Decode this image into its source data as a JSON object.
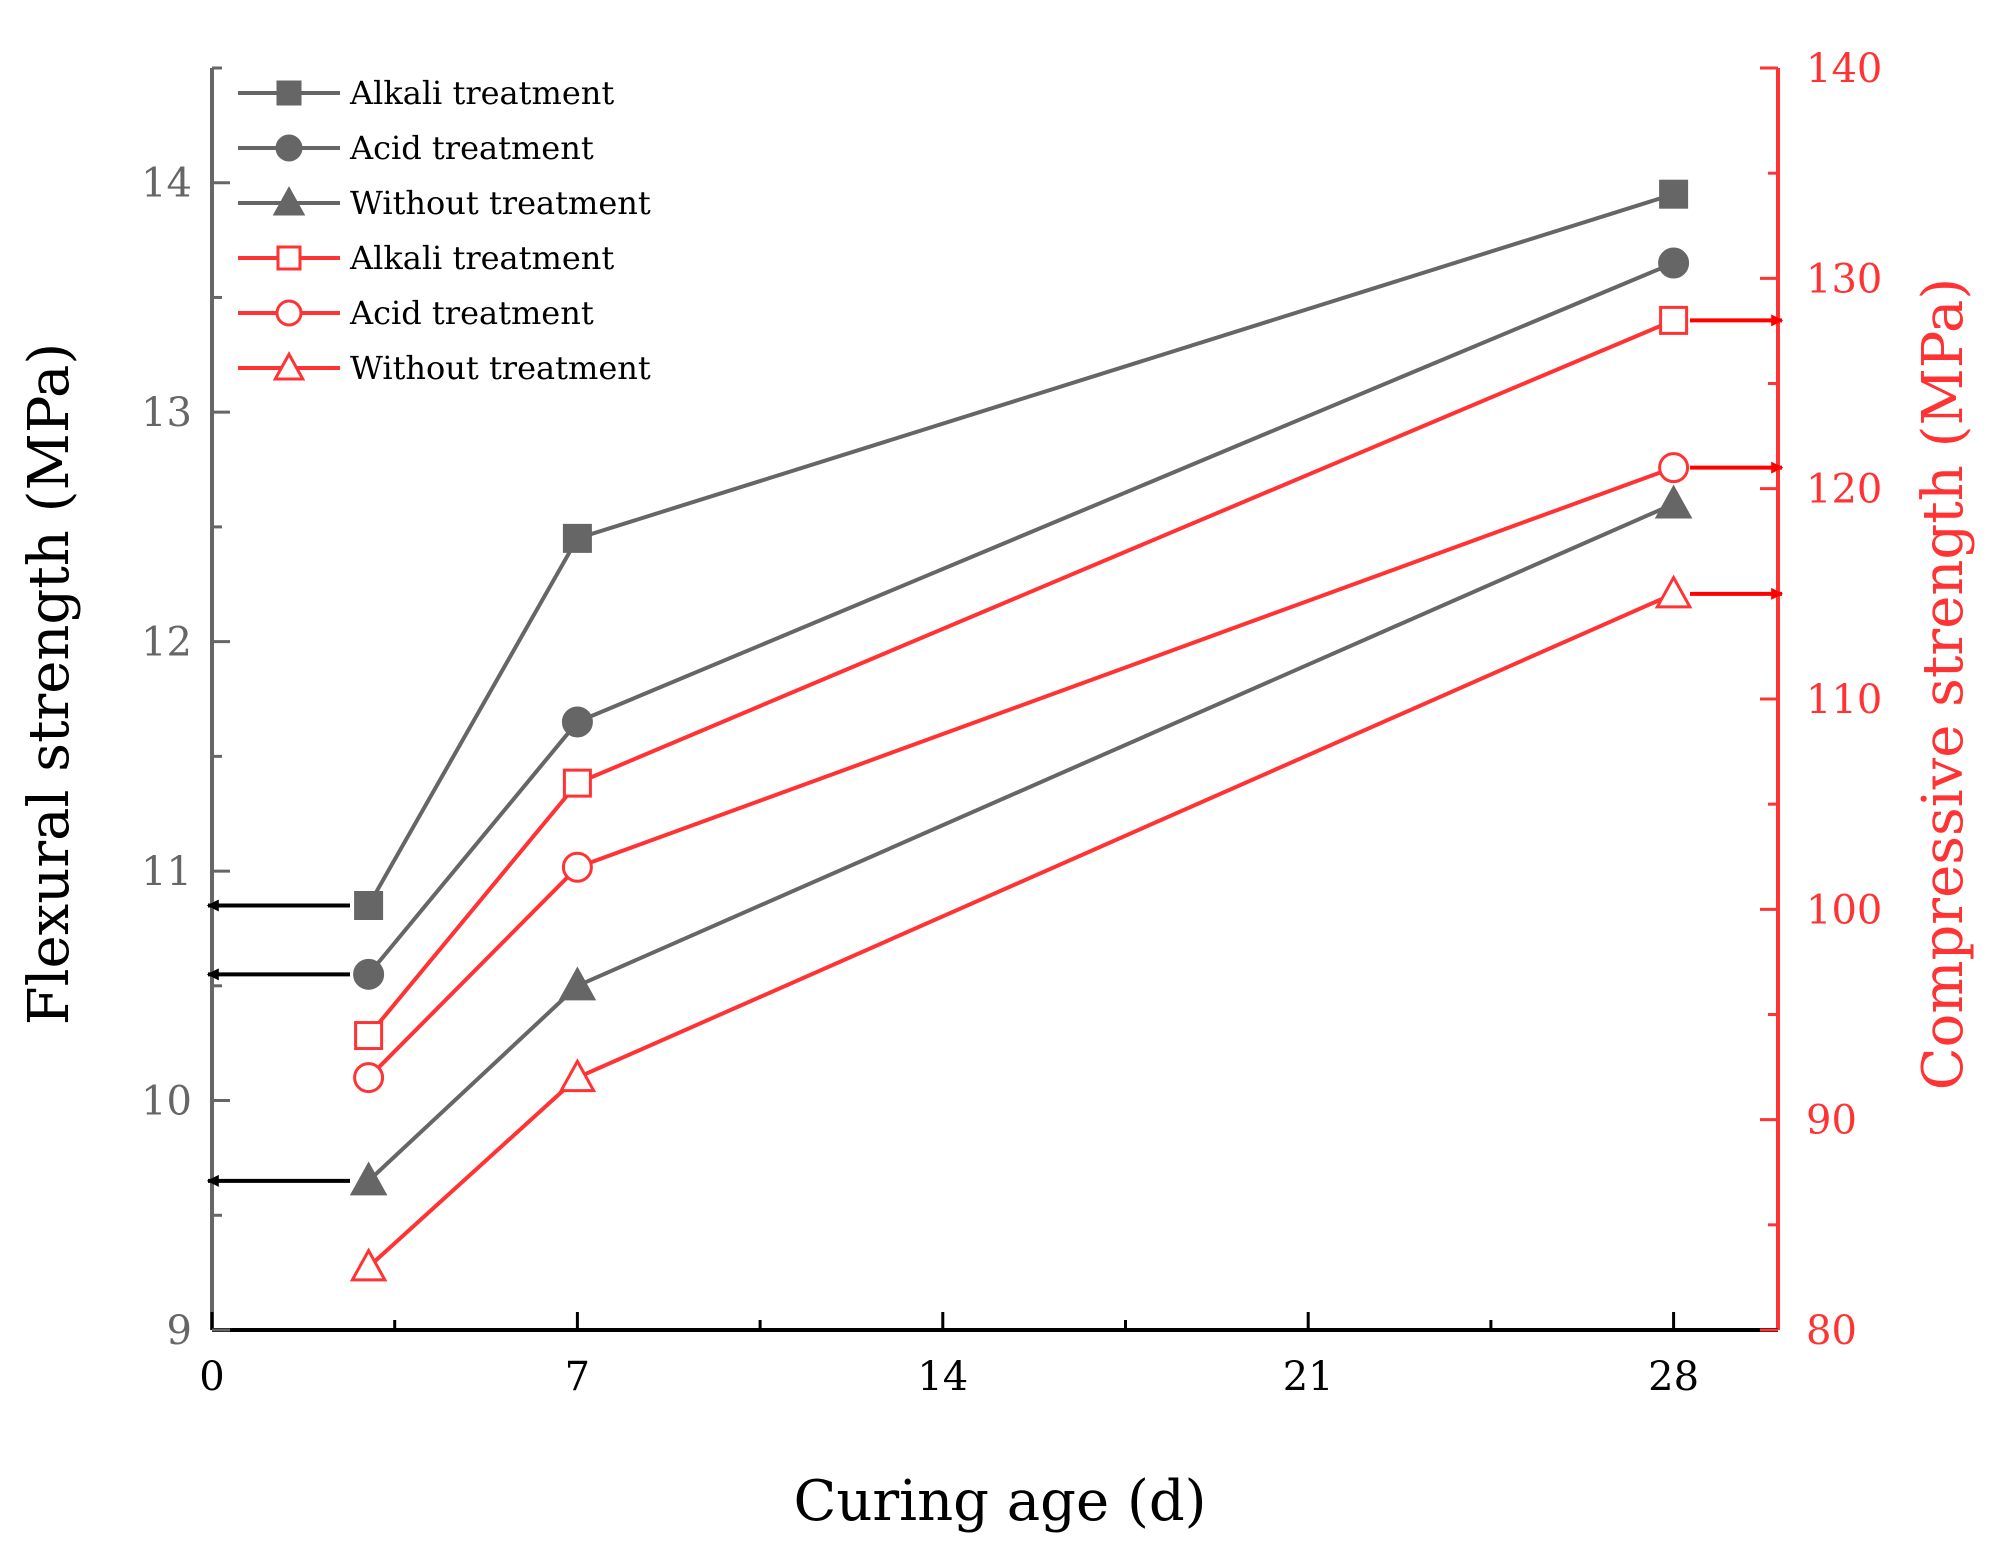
{
  "chart_data": {
    "type": "line",
    "xlabel": "Curing age (d)",
    "ylabel_left": "Flexural strength (MPa)",
    "ylabel_right": "Compressive strength (MPa)",
    "xlim": [
      0,
      30
    ],
    "xticks": [
      0,
      7,
      14,
      21,
      28
    ],
    "ylim_left": [
      9,
      14.5
    ],
    "yticks_left": [
      9,
      10,
      11,
      12,
      13,
      14
    ],
    "ylim_right": [
      80,
      140
    ],
    "yticks_right": [
      80,
      90,
      100,
      110,
      120,
      130,
      140
    ],
    "grid": false,
    "legend_position": "top-left",
    "colors": {
      "flexural": "#666666",
      "compressive": "#ff3333",
      "arrow_left": "#000000",
      "arrow_right": "#ff0000"
    },
    "series": [
      {
        "name": "Alkali treatment",
        "axis": "left",
        "marker": "square-filled",
        "x": [
          3,
          7,
          28
        ],
        "y": [
          10.85,
          12.45,
          13.95
        ]
      },
      {
        "name": "Acid treatment",
        "axis": "left",
        "marker": "circle-filled",
        "x": [
          3,
          7,
          28
        ],
        "y": [
          10.55,
          11.65,
          13.65
        ]
      },
      {
        "name": "Without treatment",
        "axis": "left",
        "marker": "triangle-filled",
        "x": [
          3,
          7,
          28
        ],
        "y": [
          9.65,
          10.5,
          12.6
        ]
      },
      {
        "name": "Alkali treatment",
        "axis": "right",
        "marker": "square-open",
        "x": [
          3,
          7,
          28
        ],
        "y": [
          94,
          106,
          128
        ]
      },
      {
        "name": "Acid treatment",
        "axis": "right",
        "marker": "circle-open",
        "x": [
          3,
          7,
          28
        ],
        "y": [
          92,
          102,
          121
        ]
      },
      {
        "name": "Without treatment",
        "axis": "right",
        "marker": "triangle-open",
        "x": [
          3,
          7,
          28
        ],
        "y": [
          83,
          92,
          115
        ]
      }
    ],
    "annotations": [
      {
        "type": "arrow",
        "direction": "left",
        "axis": "left",
        "y": 10.85
      },
      {
        "type": "arrow",
        "direction": "left",
        "axis": "left",
        "y": 10.55
      },
      {
        "type": "arrow",
        "direction": "left",
        "axis": "left",
        "y": 9.65
      },
      {
        "type": "arrow",
        "direction": "right",
        "axis": "right",
        "y": 128
      },
      {
        "type": "arrow",
        "direction": "right",
        "axis": "right",
        "y": 121
      },
      {
        "type": "arrow",
        "direction": "right",
        "axis": "right",
        "y": 115
      }
    ]
  }
}
